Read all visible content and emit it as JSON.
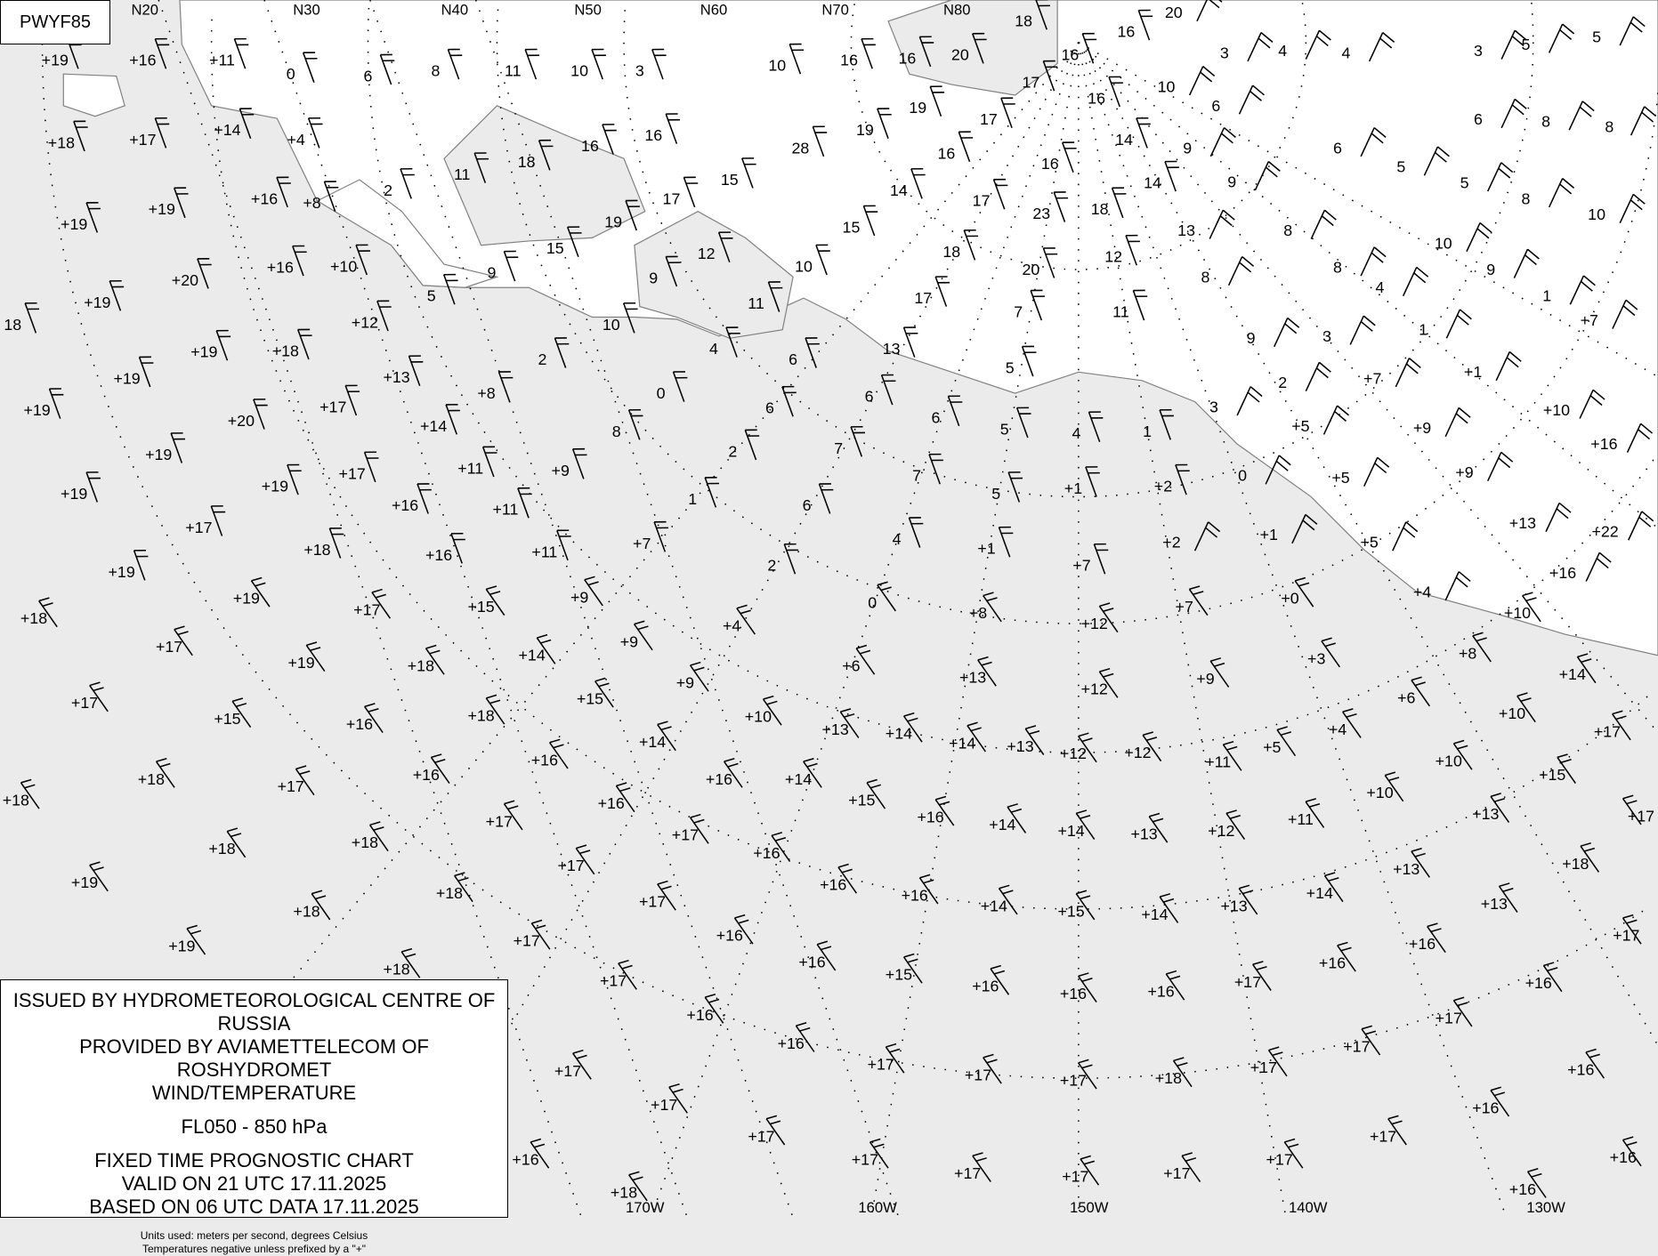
{
  "chart_code": "PWYF85",
  "legend": {
    "line1": "ISSUED BY HYDROMETEOROLOGICAL CENTRE OF RUSSIA",
    "line2": "PROVIDED BY AVIAMETTELECOM OF ROSHYDROMET",
    "line3": "WIND/TEMPERATURE",
    "level": "FL050 - 850 hPa",
    "type": "FIXED TIME PROGNOSTIC CHART",
    "valid": "VALID ON 21 UTC 17.11.2025",
    "based": "BASED ON 06 UTC DATA 17.11.2025",
    "units": "Units used: meters per second, degrees Celsius",
    "note": "Temperatures negative unless prefixed by a \"+\""
  },
  "colors": {
    "ocean": "#ebebeb",
    "land": "#ffffff",
    "coast": "#808080",
    "ink": "#000000"
  },
  "map": {
    "lat_labels": [
      "N20",
      "N30",
      "N40",
      "N50",
      "N60",
      "N70",
      "N80"
    ],
    "lon_labels": [
      "170W",
      "160W",
      "150W",
      "140W",
      "130W"
    ],
    "temps": [
      "+19",
      "+16",
      "+11",
      "0",
      "6",
      "8",
      "11",
      "10",
      "3",
      "10",
      "16",
      "16",
      "20",
      "18",
      "16",
      "16",
      "20",
      "3",
      "4",
      "4",
      "3",
      "5",
      "5",
      "+18",
      "+17",
      "+14",
      "+4",
      "11",
      "18",
      "16",
      "16",
      "15",
      "28",
      "19",
      "19",
      "17",
      "17",
      "16",
      "16",
      "14",
      "10",
      "6",
      "9",
      "9",
      "14",
      "13",
      "8",
      "6",
      "5",
      "5",
      "6",
      "8",
      "8",
      "8",
      "10",
      "10",
      "9",
      "8",
      "8",
      "4",
      "1",
      "3",
      "9",
      "2",
      "3",
      "+7",
      "+7",
      "1",
      "+1",
      "+10",
      "+9",
      "+5",
      "+16",
      "+9",
      "+5",
      "+13",
      "+22",
      "+5",
      "+16",
      "+4",
      "+10",
      "+8",
      "+14",
      "+6",
      "+10",
      "+17",
      "+10",
      "+15",
      "+13",
      "+17",
      "+18",
      "+13",
      "+17",
      "+16",
      "+17",
      "+16",
      "+16",
      "+16",
      "+16",
      "2",
      "+8",
      "+16",
      "+19",
      "+19",
      "+20",
      "+16",
      "+10",
      "9",
      "15",
      "19",
      "17",
      "12",
      "9",
      "10",
      "15",
      "18",
      "17",
      "14",
      "23",
      "18",
      "16",
      "20",
      "12",
      "11",
      "17",
      "7",
      "11",
      "10",
      "5",
      "+12",
      "+18",
      "+19",
      "+19",
      "18",
      "13",
      "5",
      "6",
      "6",
      "6",
      "4",
      "2",
      "0",
      "+8",
      "+13",
      "+17",
      "+19",
      "+19",
      "+20",
      "+14",
      "8",
      "6",
      "7",
      "5",
      "4",
      "1",
      "2",
      "7",
      "5",
      "+1",
      "+2",
      "0",
      "+1",
      "+11",
      "+9",
      "+17",
      "+19",
      "+19",
      "+19",
      "+16",
      "+11",
      "1",
      "6",
      "4",
      "+1",
      "+7",
      "+2",
      "+17",
      "+18",
      "+16",
      "+11",
      "+7",
      "2",
      "0",
      "+8",
      "+12",
      "+7",
      "+0",
      "+3",
      "+19",
      "+19",
      "+17",
      "+15",
      "+9",
      "+9",
      "+4",
      "+6",
      "+13",
      "+12",
      "+9",
      "+18",
      "+17",
      "+19",
      "+18",
      "+14",
      "+15",
      "+9",
      "+10",
      "+13",
      "+14",
      "+14",
      "+13",
      "+12",
      "+12",
      "+11",
      "+5",
      "+4",
      "+17",
      "+15",
      "+16",
      "+18",
      "+16",
      "+14",
      "+16",
      "+14",
      "+15",
      "+16",
      "+14",
      "+14",
      "+13",
      "+12",
      "+11",
      "+10",
      "+18",
      "+18",
      "+17",
      "+16",
      "+17",
      "+16",
      "+17",
      "+16",
      "+16",
      "+16",
      "+14",
      "+15",
      "+14",
      "+13",
      "+14",
      "+13",
      "+18",
      "+18",
      "+17",
      "+18",
      "+17",
      "+16",
      "+18",
      "+19",
      "+19",
      "+18",
      "+17",
      "+16",
      "+15",
      "+16",
      "+16",
      "+16",
      "+17",
      "+16",
      "+16",
      "+17",
      "+16",
      "+16",
      "+17",
      "+17",
      "+17",
      "+18",
      "+17",
      "+17",
      "+17",
      "+17",
      "+17",
      "+17",
      "+17",
      "+17",
      "+17",
      "+17",
      "+17",
      "+16",
      "+18",
      "+18"
    ]
  }
}
